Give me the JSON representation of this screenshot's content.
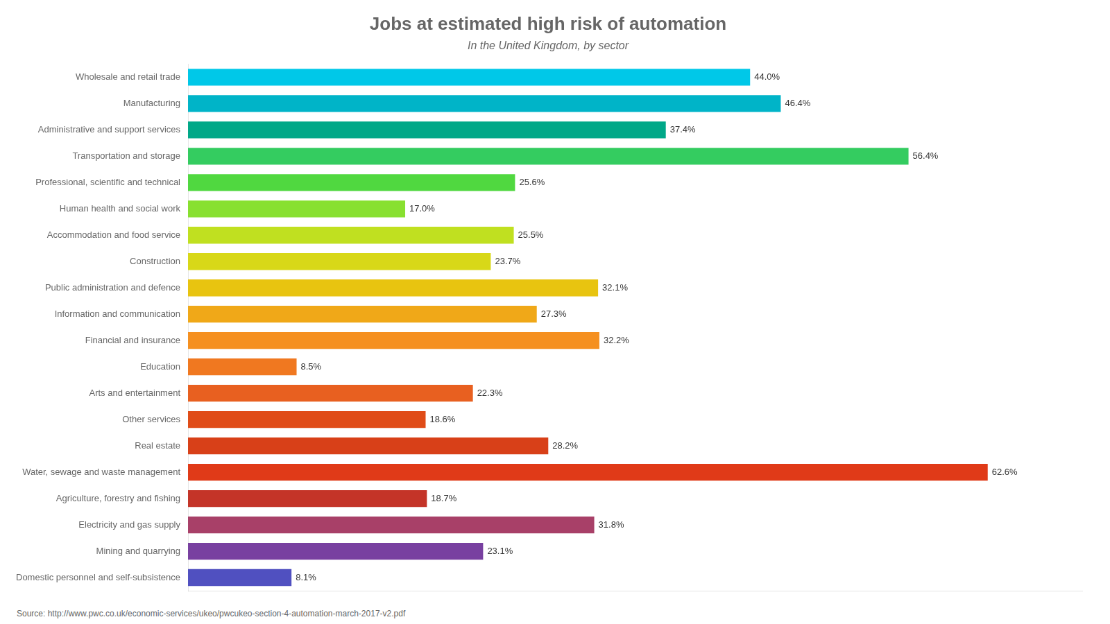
{
  "chart_data": {
    "type": "bar",
    "orientation": "horizontal",
    "title": "Jobs at estimated high risk of automation",
    "subtitle": "In the United Kingdom, by sector",
    "source": "Source: http://www.pwc.co.uk/economic-services/ukeo/pwcukeo-section-4-automation-march-2017-v2.pdf",
    "categories": [
      "Wholesale and retail trade",
      "Manufacturing",
      "Administrative and support services",
      "Transportation and storage",
      "Professional, scientific and technical",
      "Human health and social work",
      "Accommodation and food service",
      "Construction",
      "Public administration and defence",
      "Information and communication",
      "Financial and insurance",
      "Education",
      "Arts and entertainment",
      "Other services",
      "Real estate",
      "Water, sewage and waste management",
      "Agriculture, forestry and fishing",
      "Electricity and gas supply",
      "Mining and quarrying",
      "Domestic personnel and self-subsistence"
    ],
    "values": [
      44.0,
      46.4,
      37.4,
      56.4,
      25.6,
      17.0,
      25.5,
      23.7,
      32.1,
      27.3,
      32.2,
      8.5,
      22.3,
      18.6,
      28.2,
      62.6,
      18.7,
      31.8,
      23.1,
      8.1
    ],
    "value_labels": [
      "44.0%",
      "46.4%",
      "37.4%",
      "56.4%",
      "25.6%",
      "17.0%",
      "25.5%",
      "23.7%",
      "32.1%",
      "27.3%",
      "32.2%",
      "8.5%",
      "22.3%",
      "18.6%",
      "28.2%",
      "62.6%",
      "18.7%",
      "31.8%",
      "23.1%",
      "8.1%"
    ],
    "colors": [
      "#00C8E8",
      "#00B4C8",
      "#00A888",
      "#34CC60",
      "#50D840",
      "#88E030",
      "#C0E020",
      "#D8D818",
      "#E8C410",
      "#F0A818",
      "#F59020",
      "#F07820",
      "#E86020",
      "#E04C18",
      "#D84018",
      "#E03A18",
      "#C43428",
      "#A84068",
      "#7840A0",
      "#5050C0"
    ],
    "xlim": [
      0,
      70
    ],
    "data_labels": true,
    "tick_labels": "y",
    "grid": false
  }
}
